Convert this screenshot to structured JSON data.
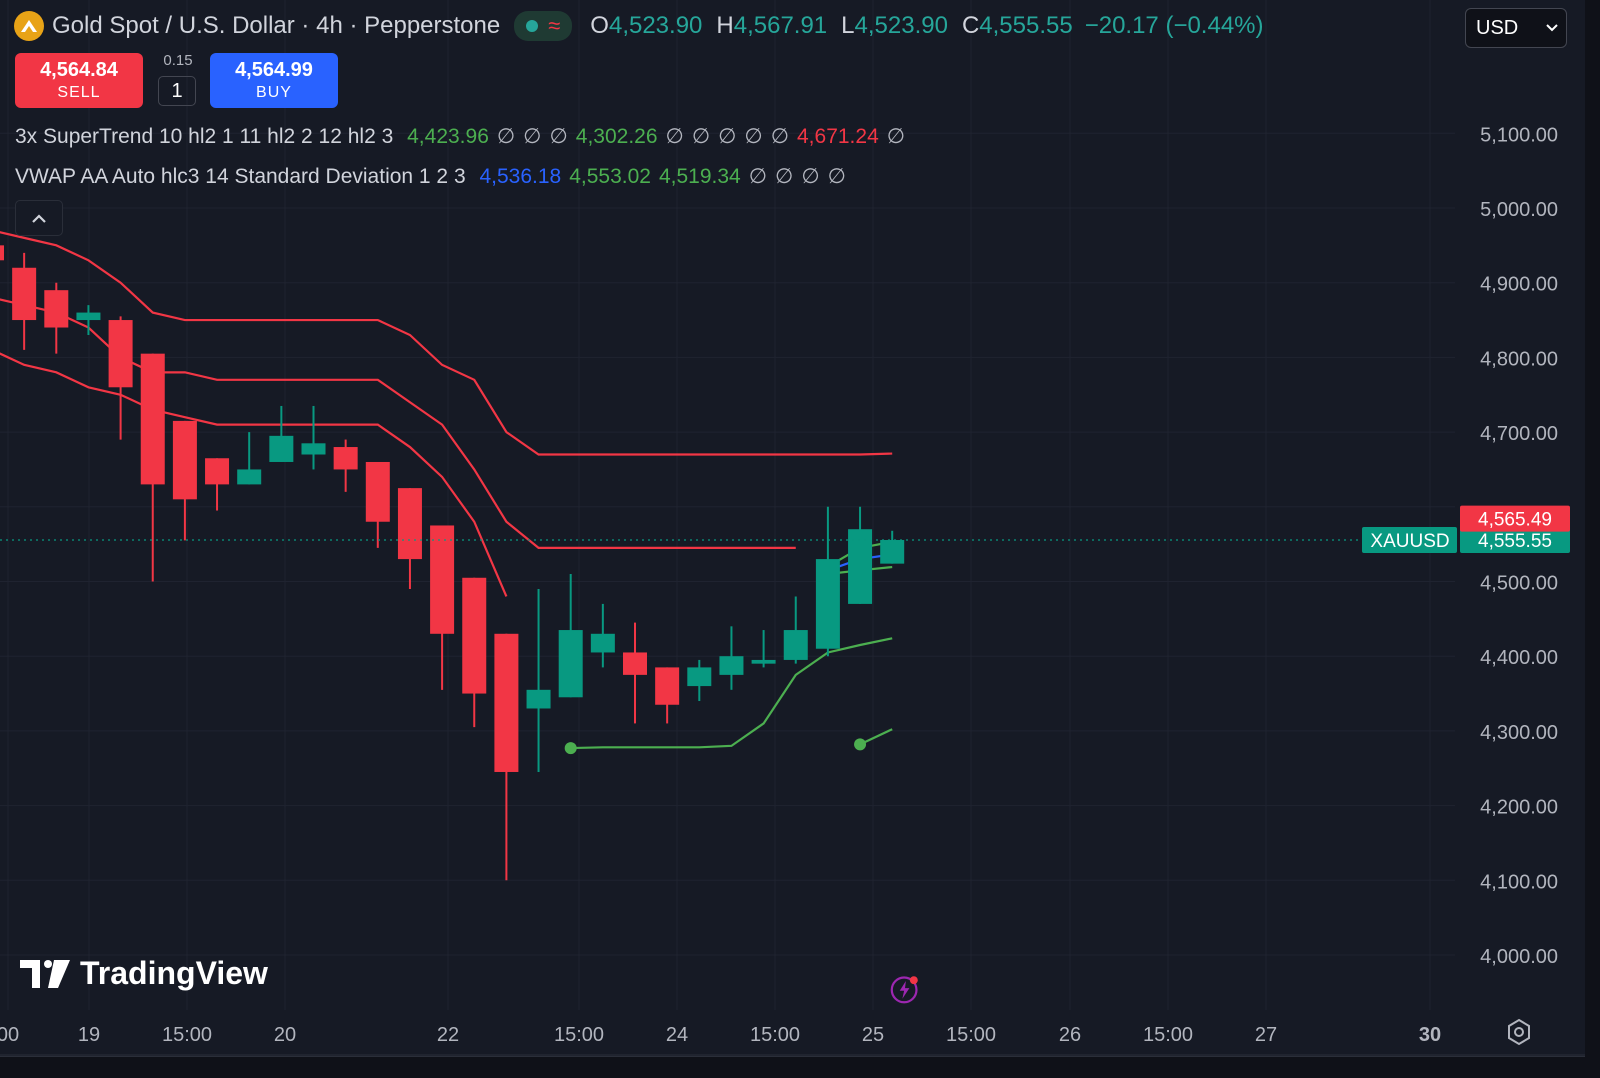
{
  "header": {
    "title": "Gold Spot / U.S. Dollar · 4h · Pepperstone",
    "ohlc": [
      {
        "label": "O",
        "value": "4,523.90"
      },
      {
        "label": "H",
        "value": "4,567.91"
      },
      {
        "label": "L",
        "value": "4,523.90"
      },
      {
        "label": "C",
        "value": "4,555.55"
      }
    ],
    "change": "−20.17 (−0.44%)",
    "wave_icon": "≈"
  },
  "currency": {
    "value": "USD"
  },
  "trade": {
    "sell_price": "4,564.84",
    "sell_label": "SELL",
    "spread": "0.15",
    "quantity": "1",
    "buy_price": "4,564.99",
    "buy_label": "BUY"
  },
  "indicators": [
    {
      "name": "3x SuperTrend 10 hl2 1 11 hl2 2 12 hl2 3",
      "values": [
        {
          "v": "4,423.96",
          "c": "g"
        },
        {
          "v": "∅",
          "c": "n"
        },
        {
          "v": "∅",
          "c": "n"
        },
        {
          "v": "∅",
          "c": "n"
        },
        {
          "v": "4,302.26",
          "c": "g"
        },
        {
          "v": "∅",
          "c": "n"
        },
        {
          "v": "∅",
          "c": "n"
        },
        {
          "v": "∅",
          "c": "n"
        },
        {
          "v": "∅",
          "c": "n"
        },
        {
          "v": "∅",
          "c": "n"
        },
        {
          "v": "4,671.24",
          "c": "r"
        },
        {
          "v": "∅",
          "c": "n"
        }
      ]
    },
    {
      "name": "VWAP AA Auto hlc3 14 Standard Deviation 1 2 3",
      "values": [
        {
          "v": "4,536.18",
          "c": "b"
        },
        {
          "v": "4,553.02",
          "c": "g"
        },
        {
          "v": "4,519.34",
          "c": "g"
        },
        {
          "v": "∅",
          "c": "n"
        },
        {
          "v": "∅",
          "c": "n"
        },
        {
          "v": "∅",
          "c": "n"
        },
        {
          "v": "∅",
          "c": "n"
        }
      ]
    }
  ],
  "watermark": "TradingView",
  "colors": {
    "up": "#089981",
    "down": "#f23645",
    "supertrend_down": "#f23645",
    "supertrend_up": "#4caf50",
    "background": "#161a25"
  },
  "chart_data": {
    "type": "candlestick",
    "symbol": "XAUUSD",
    "y_ticks": [
      4000,
      4100,
      4200,
      4300,
      4400,
      4500,
      4600,
      4700,
      4800,
      4900,
      5000,
      5100
    ],
    "y_tick_labels": [
      "4,000.00",
      "4,100.00",
      "4,200.00",
      "4,300.00",
      "4,400.00",
      "4,500.00",
      "",
      "4,700.00",
      "4,800.00",
      "4,900.00",
      "5,000.00",
      "5,100.00"
    ],
    "ylim": [
      3960,
      5260
    ],
    "x_labels": [
      "00",
      "19",
      "15:00",
      "20",
      "22",
      "15:00",
      "24",
      "15:00",
      "25",
      "15:00",
      "26",
      "15:00",
      "27",
      "30"
    ],
    "last_price_label": "4,555.55",
    "ask_price_label": "4,565.49",
    "last_price": 4555.55,
    "ask_price": 4565.49,
    "candles": [
      {
        "o": 4950,
        "h": 4990,
        "l": 4920,
        "c": 4930
      },
      {
        "o": 4920,
        "h": 4940,
        "l": 4810,
        "c": 4850
      },
      {
        "o": 4890,
        "h": 4900,
        "l": 4805,
        "c": 4840
      },
      {
        "o": 4850,
        "h": 4870,
        "l": 4830,
        "c": 4860
      },
      {
        "o": 4850,
        "h": 4855,
        "l": 4690,
        "c": 4760
      },
      {
        "o": 4805,
        "h": 4805,
        "l": 4500,
        "c": 4630
      },
      {
        "o": 4715,
        "h": 4715,
        "l": 4555,
        "c": 4610
      },
      {
        "o": 4665,
        "h": 4665,
        "l": 4595,
        "c": 4630
      },
      {
        "o": 4630,
        "h": 4700,
        "l": 4630,
        "c": 4650
      },
      {
        "o": 4660,
        "h": 4735,
        "l": 4660,
        "c": 4695
      },
      {
        "o": 4670,
        "h": 4735,
        "l": 4650,
        "c": 4685
      },
      {
        "o": 4680,
        "h": 4690,
        "l": 4620,
        "c": 4650
      },
      {
        "o": 4660,
        "h": 4660,
        "l": 4545,
        "c": 4580
      },
      {
        "o": 4625,
        "h": 4625,
        "l": 4490,
        "c": 4530
      },
      {
        "o": 4575,
        "h": 4575,
        "l": 4355,
        "c": 4430
      },
      {
        "o": 4505,
        "h": 4505,
        "l": 4305,
        "c": 4350
      },
      {
        "o": 4430,
        "h": 4430,
        "l": 4100,
        "c": 4245
      },
      {
        "o": 4330,
        "h": 4490,
        "l": 4245,
        "c": 4355
      },
      {
        "o": 4345,
        "h": 4510,
        "l": 4345,
        "c": 4435
      },
      {
        "o": 4405,
        "h": 4470,
        "l": 4385,
        "c": 4430
      },
      {
        "o": 4405,
        "h": 4445,
        "l": 4310,
        "c": 4375
      },
      {
        "o": 4385,
        "h": 4385,
        "l": 4310,
        "c": 4335
      },
      {
        "o": 4360,
        "h": 4395,
        "l": 4340,
        "c": 4385
      },
      {
        "o": 4375,
        "h": 4440,
        "l": 4355,
        "c": 4400
      },
      {
        "o": 4390,
        "h": 4435,
        "l": 4385,
        "c": 4395
      },
      {
        "o": 4395,
        "h": 4480,
        "l": 4390,
        "c": 4435
      },
      {
        "o": 4410,
        "h": 4600,
        "l": 4400,
        "c": 4530
      },
      {
        "o": 4470,
        "h": 4600,
        "l": 4470,
        "c": 4570
      },
      {
        "o": 4523.9,
        "h": 4567.91,
        "l": 4523.9,
        "c": 4555.55
      }
    ],
    "supertrend_down_1": [
      4970,
      4960,
      4950,
      4930,
      4900,
      4860,
      4850,
      4850,
      4850,
      4850,
      4850,
      4850,
      4850,
      4830,
      4790,
      4770,
      4700,
      4670,
      4670,
      4670,
      4670,
      4670,
      4670,
      4670,
      4670,
      4670,
      4670,
      4670,
      4671.24
    ],
    "supertrend_down_2": [
      4880,
      4870,
      4860,
      4840,
      4800,
      4780,
      4780,
      4770,
      4770,
      4770,
      4770,
      4770,
      4770,
      4740,
      4710,
      4650,
      4580,
      4545,
      4545,
      4545,
      4545,
      4545,
      4545,
      4545,
      4545,
      4545,
      null,
      null,
      null
    ],
    "supertrend_down_3": [
      4810,
      4790,
      4780,
      4760,
      4750,
      4730,
      4720,
      4710,
      4710,
      4710,
      4710,
      4710,
      4710,
      4680,
      4640,
      4580,
      4480,
      null,
      null,
      null,
      null,
      null,
      null,
      null,
      null,
      null,
      null,
      null,
      null
    ],
    "supertrend_up_1": [
      null,
      null,
      null,
      null,
      null,
      null,
      null,
      null,
      null,
      null,
      null,
      null,
      null,
      null,
      null,
      null,
      null,
      null,
      4277,
      4278,
      4278,
      4278,
      4278,
      4280,
      4310,
      4375,
      4405,
      4415,
      4423.96
    ],
    "supertrend_up_2": [
      null,
      null,
      null,
      null,
      null,
      null,
      null,
      null,
      null,
      null,
      null,
      null,
      null,
      null,
      null,
      null,
      null,
      null,
      null,
      null,
      null,
      null,
      null,
      null,
      null,
      null,
      null,
      4282,
      4302.26
    ],
    "vwap": [
      null,
      null,
      null,
      null,
      null,
      null,
      null,
      null,
      null,
      null,
      null,
      null,
      null,
      null,
      null,
      null,
      null,
      null,
      null,
      null,
      null,
      null,
      null,
      null,
      null,
      null,
      4515,
      4530,
      4536.18
    ],
    "vwap_upper": [
      null,
      null,
      null,
      null,
      null,
      null,
      null,
      null,
      null,
      null,
      null,
      null,
      null,
      null,
      null,
      null,
      null,
      null,
      null,
      null,
      null,
      null,
      null,
      null,
      null,
      null,
      4520,
      4545,
      4553.02
    ],
    "vwap_lower": [
      null,
      null,
      null,
      null,
      null,
      null,
      null,
      null,
      null,
      null,
      null,
      null,
      null,
      null,
      null,
      null,
      null,
      null,
      null,
      null,
      null,
      null,
      null,
      null,
      null,
      null,
      4510,
      4515,
      4519.34
    ]
  }
}
